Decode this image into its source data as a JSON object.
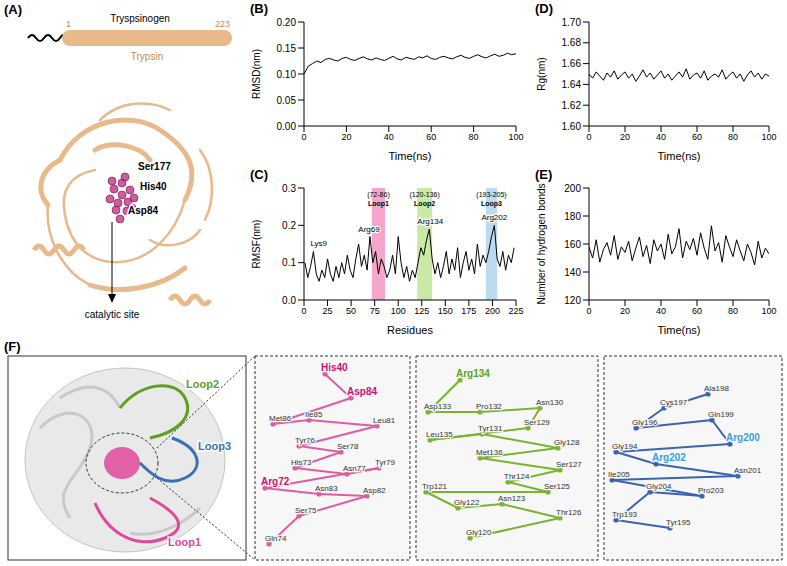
{
  "chart_data": [
    {
      "label": "(B)",
      "type": "line",
      "xlabel": "Time(ns)",
      "ylabel": "RMSD(nm)",
      "color": "#000000",
      "xlim": [
        0,
        100
      ],
      "xticks": [
        0,
        20,
        40,
        60,
        80,
        100
      ],
      "ylim": [
        0,
        0.2
      ],
      "yticks": [
        {
          "value": 0,
          "label": "0.00"
        },
        0.05,
        {
          "value": 0.1,
          "label": "0.10"
        },
        0.15,
        {
          "value": 0.2,
          "label": "0.20"
        }
      ],
      "x": [
        0,
        2,
        4,
        6,
        8,
        10,
        12,
        14,
        16,
        18,
        20,
        22,
        24,
        26,
        28,
        30,
        32,
        34,
        36,
        38,
        40,
        42,
        44,
        46,
        48,
        50,
        52,
        54,
        56,
        58,
        60,
        62,
        64,
        66,
        68,
        70,
        72,
        74,
        76,
        78,
        80,
        82,
        84,
        86,
        88,
        90,
        92,
        94,
        96,
        98,
        100
      ],
      "values": [
        0.1,
        0.115,
        0.12,
        0.125,
        0.122,
        0.128,
        0.13,
        0.127,
        0.125,
        0.13,
        0.132,
        0.128,
        0.126,
        0.13,
        0.133,
        0.129,
        0.127,
        0.131,
        0.128,
        0.126,
        0.13,
        0.134,
        0.129,
        0.127,
        0.132,
        0.13,
        0.128,
        0.133,
        0.131,
        0.135,
        0.13,
        0.128,
        0.132,
        0.134,
        0.131,
        0.129,
        0.133,
        0.136,
        0.132,
        0.13,
        0.134,
        0.137,
        0.133,
        0.131,
        0.135,
        0.138,
        0.134,
        0.136,
        0.14,
        0.137,
        0.139
      ]
    },
    {
      "label": "(C)",
      "type": "line",
      "xlabel": "Residues",
      "ylabel": "RMSF(nm)",
      "color": "#000000",
      "xlim": [
        0,
        225
      ],
      "xticks": [
        0,
        25,
        50,
        75,
        100,
        125,
        150,
        175,
        200,
        225
      ],
      "ylim": [
        0,
        0.3
      ],
      "yticks": [
        {
          "value": 0,
          "label": "0.0"
        },
        0.1,
        0.2,
        0.3
      ],
      "x": [
        1,
        4,
        7,
        10,
        13,
        16,
        19,
        22,
        25,
        28,
        31,
        34,
        37,
        40,
        43,
        46,
        49,
        52,
        55,
        58,
        61,
        64,
        67,
        70,
        73,
        76,
        79,
        82,
        85,
        88,
        91,
        94,
        97,
        100,
        103,
        106,
        109,
        112,
        115,
        118,
        121,
        124,
        127,
        130,
        133,
        136,
        139,
        142,
        145,
        148,
        151,
        154,
        157,
        160,
        163,
        166,
        169,
        172,
        175,
        178,
        181,
        184,
        187,
        190,
        193,
        196,
        199,
        202,
        205,
        208,
        211,
        214,
        217,
        220,
        223
      ],
      "values": [
        0.1,
        0.06,
        0.09,
        0.13,
        0.07,
        0.05,
        0.08,
        0.06,
        0.11,
        0.07,
        0.05,
        0.09,
        0.06,
        0.1,
        0.07,
        0.12,
        0.08,
        0.06,
        0.11,
        0.15,
        0.09,
        0.12,
        0.08,
        0.17,
        0.1,
        0.13,
        0.07,
        0.11,
        0.09,
        0.06,
        0.08,
        0.12,
        0.07,
        0.17,
        0.1,
        0.06,
        0.09,
        0.05,
        0.08,
        0.06,
        0.1,
        0.14,
        0.12,
        0.16,
        0.19,
        0.11,
        0.07,
        0.1,
        0.06,
        0.09,
        0.13,
        0.07,
        0.11,
        0.08,
        0.14,
        0.06,
        0.1,
        0.13,
        0.08,
        0.11,
        0.07,
        0.15,
        0.09,
        0.12,
        0.1,
        0.13,
        0.17,
        0.2,
        0.11,
        0.09,
        0.13,
        0.08,
        0.12,
        0.1,
        0.14
      ],
      "regions": [
        {
          "name": "Loop1",
          "range_label": "(72-86)",
          "x": [
            72,
            86
          ],
          "color": "#f06aa8"
        },
        {
          "name": "Loop2",
          "range_label": "(120-136)",
          "x": [
            120,
            136
          ],
          "color": "#a6d96a"
        },
        {
          "name": "Loop3",
          "range_label": "(193-205)",
          "x": [
            193,
            205
          ],
          "color": "#8fc3e6"
        }
      ],
      "annotations": [
        {
          "text": "Lys9",
          "x": 9,
          "y": 0.13
        },
        {
          "text": "Arg69",
          "x": 69,
          "y": 0.17
        },
        {
          "text": "Arg134",
          "x": 134,
          "y": 0.19
        },
        {
          "text": "Arg202",
          "x": 202,
          "y": 0.2
        }
      ]
    },
    {
      "label": "(D)",
      "type": "line",
      "xlabel": "Time(ns)",
      "ylabel": "Rg(nm)",
      "color": "#000000",
      "xlim": [
        0,
        100
      ],
      "xticks": [
        0,
        20,
        40,
        60,
        80,
        100
      ],
      "ylim": [
        1.6,
        1.7
      ],
      "yticks": [
        {
          "value": 1.6,
          "label": "1.60"
        },
        1.62,
        1.64,
        1.66,
        1.68,
        {
          "value": 1.7,
          "label": "1.70"
        }
      ],
      "x": [
        0,
        2,
        4,
        6,
        8,
        10,
        12,
        14,
        16,
        18,
        20,
        22,
        24,
        26,
        28,
        30,
        32,
        34,
        36,
        38,
        40,
        42,
        44,
        46,
        48,
        50,
        52,
        54,
        56,
        58,
        60,
        62,
        64,
        66,
        68,
        70,
        72,
        74,
        76,
        78,
        80,
        82,
        84,
        86,
        88,
        90,
        92,
        94,
        96,
        98,
        100
      ],
      "values": [
        1.65,
        1.646,
        1.652,
        1.648,
        1.644,
        1.651,
        1.647,
        1.653,
        1.645,
        1.649,
        1.652,
        1.646,
        1.65,
        1.643,
        1.648,
        1.654,
        1.647,
        1.651,
        1.645,
        1.649,
        1.653,
        1.646,
        1.65,
        1.644,
        1.648,
        1.652,
        1.647,
        1.655,
        1.645,
        1.649,
        1.651,
        1.646,
        1.653,
        1.644,
        1.648,
        1.65,
        1.647,
        1.654,
        1.645,
        1.649,
        1.652,
        1.646,
        1.65,
        1.643,
        1.649,
        1.653,
        1.647,
        1.651,
        1.645,
        1.65,
        1.648
      ]
    },
    {
      "label": "(E)",
      "type": "line",
      "xlabel": "Time(ns)",
      "ylabel": "Number of hydrogen bonds",
      "color": "#000000",
      "xlim": [
        0,
        100
      ],
      "xticks": [
        0,
        20,
        40,
        60,
        80,
        100
      ],
      "ylim": [
        120,
        200
      ],
      "yticks": [
        120,
        140,
        160,
        180,
        200
      ],
      "x": [
        0,
        2,
        4,
        6,
        8,
        10,
        12,
        14,
        16,
        18,
        20,
        22,
        24,
        26,
        28,
        30,
        32,
        34,
        36,
        38,
        40,
        42,
        44,
        46,
        48,
        50,
        52,
        54,
        56,
        58,
        60,
        62,
        64,
        66,
        68,
        70,
        72,
        74,
        76,
        78,
        80,
        82,
        84,
        86,
        88,
        90,
        92,
        94,
        96,
        98,
        100
      ],
      "values": [
        158,
        150,
        163,
        147,
        156,
        161,
        152,
        166,
        149,
        158,
        154,
        162,
        148,
        157,
        165,
        151,
        159,
        146,
        163,
        155,
        160,
        149,
        167,
        153,
        158,
        171,
        150,
        162,
        156,
        164,
        152,
        168,
        157,
        149,
        173,
        155,
        161,
        147,
        166,
        158,
        151,
        163,
        155,
        148,
        160,
        154,
        145,
        162,
        150,
        157,
        153
      ]
    }
  ],
  "panel_a": {
    "label": "(A)",
    "precursor": "Tryspsinogen",
    "mature": "Trypsin",
    "start": 1,
    "end": 223,
    "color": "#e8b98a",
    "residues": [
      "Ser177",
      "His40",
      "Asp84"
    ],
    "site_label": "catalytic site",
    "site_color": "#c0267a"
  },
  "panel_f": {
    "label": "(F)",
    "loops": [
      {
        "name": "Loop1",
        "color": "#e0489a"
      },
      {
        "name": "Loop2",
        "color": "#5f9e1e"
      },
      {
        "name": "Loop3",
        "color": "#3b6fb6"
      }
    ],
    "boxes": [
      {
        "color": "#e05ca0",
        "highlight_color": "#d0106e",
        "highlight": [
          "His40",
          "Asp84",
          "Arg72"
        ],
        "residues": [
          "His40",
          "Asp84",
          "Met86",
          "Ile85",
          "Leu81",
          "Tyr76",
          "Ser78",
          "His73",
          "Asn77",
          "Tyr79",
          "Arg72",
          "Asn83",
          "Asp82",
          "Ser75",
          "Gln74"
        ]
      },
      {
        "color": "#7ab32e",
        "highlight_color": "#5f9e1e",
        "highlight": [
          "Arg134"
        ],
        "residues": [
          "Arg134",
          "Asp133",
          "Pro132",
          "Asn130",
          "Ser129",
          "Leu135",
          "Tyr131",
          "Gly128",
          "Met136",
          "Ser127",
          "Thr124",
          "Ser125",
          "Trp121",
          "Gly122",
          "Asn123",
          "Thr126",
          "Gly120"
        ]
      },
      {
        "color": "#3b63b0",
        "highlight_color": "#3aa0e0",
        "highlight": [
          "Arg200",
          "Arg202"
        ],
        "residues": [
          "Ala198",
          "Cys197",
          "Gly196",
          "Gln199",
          "Arg200",
          "Gly194",
          "Arg202",
          "Asn201",
          "Ile205",
          "Pro203",
          "Gly204",
          "Trp193",
          "Tyr195"
        ]
      }
    ]
  }
}
